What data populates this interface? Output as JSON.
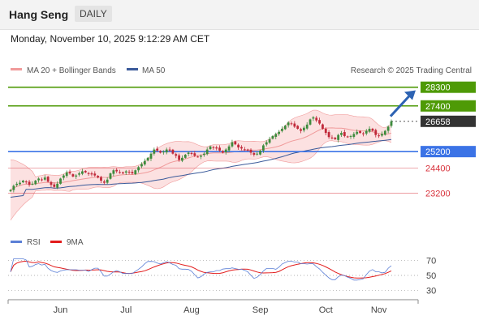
{
  "header": {
    "instrument": "Hang Seng",
    "period": "DAILY",
    "datetime": "Monday, November 10, 2025 9:12:29 AM CET"
  },
  "legend": {
    "ma20_bb": "MA 20 + Bollinger Bands",
    "ma50": "MA 50",
    "credit": "Research © 2025 Trading Central",
    "rsi": "RSI",
    "rsi_ma": "9MA"
  },
  "colors": {
    "resistance": "#4e9a06",
    "pivot": "#3b73e6",
    "support": "#d8323c",
    "price_label": "#333333",
    "candle_up": "#3d8b3d",
    "candle_down": "#c0293a",
    "ma20": "#f09a9a",
    "ma50": "#3a5a9a",
    "bands": "#fbdcdc",
    "rsi": "#5b7fd6",
    "rsi_ma": "#e21b1b",
    "arrow": "#2d63b3"
  },
  "chart_data": [
    {
      "type": "candlestick",
      "x_labels": [
        "Jun",
        "Jul",
        "Aug",
        "Sep",
        "Oct",
        "Nov"
      ],
      "ylim": [
        21500,
        28600
      ],
      "price_levels": [
        {
          "value": 28300,
          "label": "28300",
          "kind": "resistance"
        },
        {
          "value": 27400,
          "label": "27400",
          "kind": "resistance"
        },
        {
          "value": 26658,
          "label": "26658",
          "kind": "last-price"
        },
        {
          "value": 25200,
          "label": "25200",
          "kind": "pivot"
        },
        {
          "value": 24400,
          "label": "24400",
          "kind": "support"
        },
        {
          "value": 23200,
          "label": "23200",
          "kind": "support"
        }
      ],
      "close_series": [
        23350,
        23550,
        23650,
        23700,
        23800,
        23750,
        23600,
        23650,
        23800,
        23900,
        23850,
        23950,
        23750,
        23600,
        23500,
        23650,
        23900,
        24050,
        24200,
        24150,
        24000,
        24050,
        24150,
        24250,
        24200,
        24150,
        24100,
        24050,
        23950,
        23800,
        23700,
        23850,
        24150,
        24300,
        24250,
        24200,
        24150,
        24250,
        24200,
        24150,
        24300,
        24450,
        24600,
        24750,
        24900,
        25100,
        25300,
        25250,
        25150,
        25200,
        25300,
        25250,
        25100,
        25000,
        24800,
        24900,
        25050,
        25150,
        25100,
        25000,
        24950,
        25000,
        25100,
        25300,
        25450,
        25400,
        25350,
        25250,
        25150,
        25300,
        25450,
        25650,
        25550,
        25400,
        25350,
        25300,
        25250,
        25150,
        25050,
        25100,
        25250,
        25500,
        25650,
        25800,
        25950,
        26050,
        26150,
        26300,
        26450,
        26600,
        26550,
        26400,
        26300,
        26200,
        26350,
        26500,
        26750,
        26850,
        26700,
        26550,
        26300,
        26100,
        25900,
        25850,
        25800,
        26000,
        26100,
        25950,
        25900,
        25950,
        26050,
        26150,
        26100,
        26050,
        26200,
        26300,
        26200,
        26000,
        25950,
        26050,
        26200,
        26400,
        26658
      ]
    },
    {
      "type": "line",
      "title": "RSI",
      "series": [
        {
          "name": "RSI"
        },
        {
          "name": "9MA"
        }
      ],
      "y_ticks": [
        70,
        50,
        30
      ],
      "ylim": [
        20,
        80
      ]
    }
  ]
}
